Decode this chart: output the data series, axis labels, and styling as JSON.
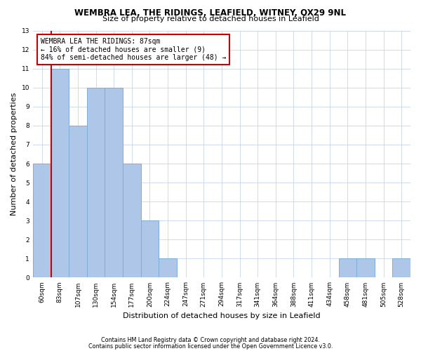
{
  "title1": "WEMBRA LEA, THE RIDINGS, LEAFIELD, WITNEY, OX29 9NL",
  "title2": "Size of property relative to detached houses in Leafield",
  "xlabel": "Distribution of detached houses by size in Leafield",
  "ylabel": "Number of detached properties",
  "categories": [
    "60sqm",
    "83sqm",
    "107sqm",
    "130sqm",
    "154sqm",
    "177sqm",
    "200sqm",
    "224sqm",
    "247sqm",
    "271sqm",
    "294sqm",
    "317sqm",
    "341sqm",
    "364sqm",
    "388sqm",
    "411sqm",
    "434sqm",
    "458sqm",
    "481sqm",
    "505sqm",
    "528sqm"
  ],
  "values": [
    6,
    11,
    8,
    10,
    10,
    6,
    3,
    1,
    0,
    0,
    0,
    0,
    0,
    0,
    0,
    0,
    0,
    1,
    1,
    0,
    1
  ],
  "bar_color": "#aec6e8",
  "bar_edge_color": "#7bafd4",
  "subject_line_color": "#cc0000",
  "annotation_text": "WEMBRA LEA THE RIDINGS: 87sqm\n← 16% of detached houses are smaller (9)\n84% of semi-detached houses are larger (48) →",
  "annotation_box_color": "#ffffff",
  "annotation_box_edge": "#cc0000",
  "ylim": [
    0,
    13
  ],
  "yticks": [
    0,
    1,
    2,
    3,
    4,
    5,
    6,
    7,
    8,
    9,
    10,
    11,
    12,
    13
  ],
  "footer1": "Contains HM Land Registry data © Crown copyright and database right 2024.",
  "footer2": "Contains public sector information licensed under the Open Government Licence v3.0.",
  "bg_color": "#ffffff",
  "grid_color": "#c8d4e8",
  "title1_fontsize": 8.5,
  "title2_fontsize": 8.0,
  "xlabel_fontsize": 8.0,
  "ylabel_fontsize": 8.0,
  "tick_fontsize": 6.5,
  "footer_fontsize": 5.8,
  "annotation_fontsize": 7.0
}
